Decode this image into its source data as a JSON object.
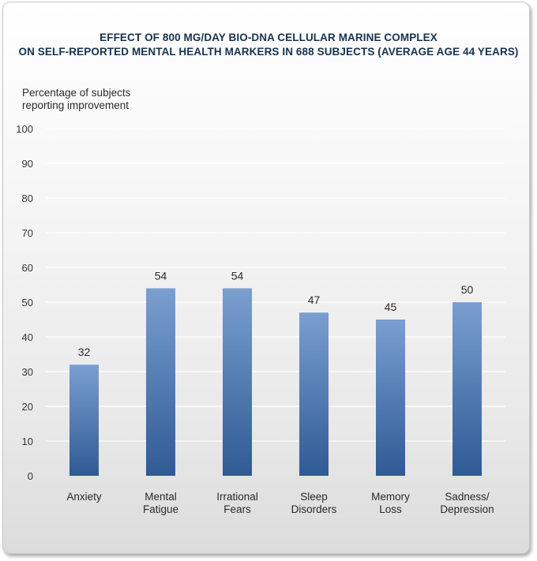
{
  "chart_data": {
    "type": "bar",
    "title": "EFFECT OF 800 MG/DAY BIO-DNA CELLULAR MARINE COMPLEX ON SELF-REPORTED MENTAL HEALTH MARKERS IN 688 SUBJECTS (AVERAGE AGE 44 YEARS)",
    "title_lines": [
      "EFFECT OF 800 MG/DAY BIO-DNA CELLULAR MARINE COMPLEX",
      "ON SELF-REPORTED MENTAL HEALTH MARKERS IN 688 SUBJECTS (AVERAGE AGE 44 YEARS)"
    ],
    "ylabel": "Percentage of subjects reporting improvement",
    "ylabel_lines": [
      "Percentage of subjects",
      "reporting improvement"
    ],
    "xlabel": "",
    "categories": [
      "Anxiety",
      "Mental Fatigue",
      "Irrational Fears",
      "Sleep Disorders",
      "Memory Loss",
      "Sadness/ Depression"
    ],
    "category_lines": [
      [
        "Anxiety"
      ],
      [
        "Mental",
        "Fatigue"
      ],
      [
        "Irrational",
        "Fears"
      ],
      [
        "Sleep",
        "Disorders"
      ],
      [
        "Memory",
        "Loss"
      ],
      [
        "Sadness/",
        "Depression"
      ]
    ],
    "values": [
      32,
      54,
      54,
      47,
      45,
      50
    ],
    "data_labels": [
      "32",
      "54",
      "54",
      "47",
      "45",
      "50"
    ],
    "ylim": [
      0,
      100
    ],
    "yticks": [
      0,
      10,
      20,
      30,
      40,
      50,
      60,
      70,
      80,
      90,
      100
    ],
    "ytick_labels": [
      "0",
      "10",
      "20",
      "30",
      "40",
      "50",
      "60",
      "70",
      "80",
      "90",
      "100"
    ],
    "grid": true,
    "legend": "none",
    "colors": {
      "bar_top": "#7a9fd0",
      "bar_bottom": "#2f5a94",
      "gridline": "#ffffff",
      "title": "#17324d"
    }
  }
}
